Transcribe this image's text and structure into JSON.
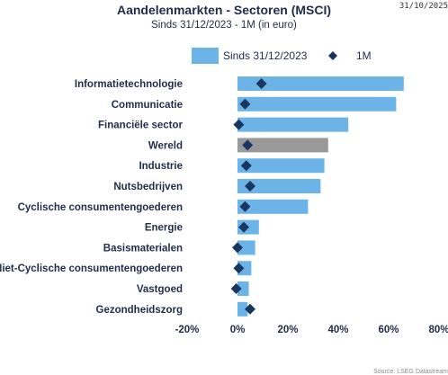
{
  "header": {
    "title": "Aandelenmarkten - Sectoren (MSCI)",
    "subtitle": "Sinds 31/12/2023 - 1M (in euro)",
    "date": "31/10/2025"
  },
  "footer": {
    "source": "Source: LSEG Datastream"
  },
  "colors": {
    "bar": "#6cb4e8",
    "highlight": "#999999",
    "marker": "#1a3560",
    "text": "#1f2d4a"
  },
  "chart_data": {
    "type": "bar",
    "orientation": "horizontal",
    "categories": [
      "Informatietechnologie",
      "Communicatie",
      "Financiële sector",
      "Wereld",
      "Industrie",
      "Nutsbedrijven",
      "Cyclische consumentengoederen",
      "Energie",
      "Basismaterialen",
      "Niet-Cyclische consumentengoederen",
      "Vastgoed",
      "Gezondheidszorg"
    ],
    "highlight_category": "Wereld",
    "series": [
      {
        "name": "Sinds 31/12/2023",
        "kind": "bar",
        "values": [
          66,
          63,
          44,
          36,
          34.5,
          33,
          28,
          8.5,
          7,
          5.5,
          4.5,
          4
        ]
      },
      {
        "name": "1M",
        "kind": "marker",
        "values": [
          9.5,
          3,
          0.5,
          4,
          3.5,
          5,
          3,
          2.5,
          0,
          0.5,
          -0.5,
          5
        ]
      }
    ],
    "xlim": [
      -20,
      80
    ],
    "xticks": [
      -20,
      0,
      20,
      40,
      60,
      80
    ],
    "tick_labels": [
      "-20%",
      "0%",
      "20%",
      "40%",
      "60%",
      "80%"
    ],
    "legend_position": "top-right",
    "grid": false
  }
}
